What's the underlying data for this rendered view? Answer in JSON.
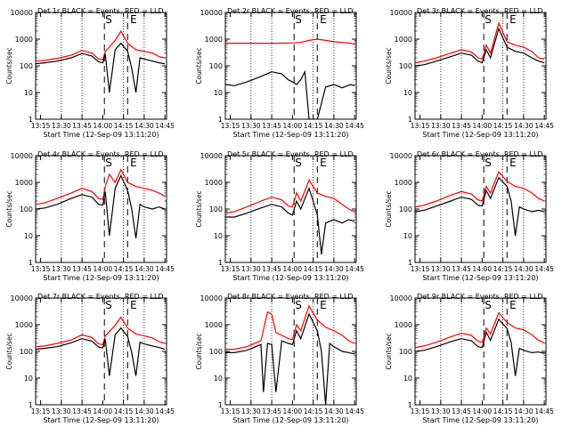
{
  "figure": {
    "x_tick_labels": [
      "13:15",
      "13:30",
      "13:45",
      "14:00",
      "14:15",
      "14:30",
      "14:45"
    ],
    "y_tick_labels": [
      "1",
      "10",
      "100",
      "1000",
      "10000"
    ],
    "ylabel": "Counts/sec",
    "xlabel": "Start Time (12-Sep-09 13:11:20)",
    "black_label": "BLACK = Events",
    "red_label": "RED = LLD",
    "marker_s": "S",
    "marker_e": "E"
  },
  "chart_data": [
    {
      "type": "line",
      "title": "Det 1r BLACK = Events, RED = LLD",
      "xlabel": "Start Time (12-Sep-09 13:11:20)",
      "ylabel": "Counts/sec",
      "ylim": [
        1,
        10000
      ],
      "yscale": "log",
      "x_ticks": [
        "13:15",
        "13:30",
        "13:45",
        "14:00",
        "14:15",
        "14:30",
        "14:45"
      ],
      "series": [
        {
          "name": "RED = LLD",
          "color": "#ff0000",
          "x": [
            13.19,
            13.3,
            13.45,
            13.62,
            13.75,
            13.87,
            13.95,
            14.0,
            14.03,
            14.08,
            14.15,
            14.22,
            14.3,
            14.4,
            14.5,
            14.6,
            14.68,
            14.75
          ],
          "y": [
            150,
            160,
            190,
            250,
            380,
            300,
            180,
            170,
            350,
            500,
            900,
            2000,
            700,
            400,
            350,
            300,
            220,
            200
          ]
        },
        {
          "name": "BLACK = Events",
          "color": "#000000",
          "x": [
            13.19,
            13.3,
            13.45,
            13.62,
            13.75,
            13.87,
            13.95,
            14.0,
            14.03,
            14.08,
            14.15,
            14.22,
            14.3,
            14.35,
            14.4,
            14.45,
            14.5,
            14.6,
            14.68,
            14.75
          ],
          "y": [
            120,
            130,
            150,
            200,
            290,
            230,
            140,
            130,
            280,
            10,
            400,
            700,
            350,
            80,
            10,
            200,
            180,
            150,
            130,
            120
          ]
        }
      ]
    },
    {
      "type": "line",
      "title": "Det 2r BLACK = Events, RED = LLD",
      "xlabel": "Start Time (12-Sep-09 13:11:20)",
      "ylabel": "Counts/sec",
      "ylim": [
        1,
        10000
      ],
      "yscale": "log",
      "x_ticks": [
        "13:15",
        "13:30",
        "13:45",
        "14:00",
        "14:15",
        "14:30",
        "14:45"
      ],
      "series": [
        {
          "name": "RED = LLD",
          "color": "#ff0000",
          "x": [
            13.19,
            13.4,
            13.6,
            13.8,
            14.0,
            14.1,
            14.2,
            14.3,
            14.4,
            14.5,
            14.6,
            14.7,
            14.75
          ],
          "y": [
            700,
            700,
            700,
            700,
            720,
            750,
            900,
            1000,
            900,
            800,
            750,
            700,
            650
          ]
        },
        {
          "name": "BLACK = Events",
          "color": "#000000",
          "x": [
            13.19,
            13.3,
            13.45,
            13.62,
            13.75,
            13.87,
            13.95,
            14.0,
            14.05,
            14.1,
            14.15,
            14.2,
            14.3,
            14.4,
            14.5,
            14.6,
            14.7,
            14.75
          ],
          "y": [
            20,
            18,
            25,
            40,
            60,
            50,
            30,
            25,
            20,
            30,
            60,
            1,
            1,
            16,
            20,
            15,
            20,
            18
          ]
        }
      ]
    },
    {
      "type": "line",
      "title": "Det 3r BLACK = Events, RED = LLD",
      "xlabel": "Start Time (12-Sep-09 13:11:20)",
      "ylabel": "Counts/sec",
      "ylim": [
        1,
        10000
      ],
      "yscale": "log",
      "x_ticks": [
        "13:15",
        "13:30",
        "13:45",
        "14:00",
        "14:15",
        "14:30",
        "14:45"
      ],
      "series": [
        {
          "name": "RED = LLD",
          "color": "#ff0000",
          "x": [
            13.19,
            13.3,
            13.45,
            13.62,
            13.75,
            13.87,
            13.95,
            14.0,
            14.05,
            14.1,
            14.2,
            14.3,
            14.4,
            14.5,
            14.6,
            14.68,
            14.75
          ],
          "y": [
            130,
            150,
            200,
            300,
            400,
            330,
            200,
            180,
            600,
            300,
            4000,
            800,
            600,
            500,
            350,
            200,
            180
          ]
        },
        {
          "name": "BLACK = Events",
          "color": "#000000",
          "x": [
            13.19,
            13.3,
            13.45,
            13.62,
            13.75,
            13.87,
            13.95,
            14.0,
            14.05,
            14.1,
            14.2,
            14.3,
            14.4,
            14.5,
            14.6,
            14.68,
            14.75
          ],
          "y": [
            100,
            110,
            150,
            220,
            300,
            250,
            150,
            130,
            400,
            200,
            2500,
            500,
            350,
            300,
            200,
            150,
            130
          ]
        }
      ]
    },
    {
      "type": "line",
      "title": "Det 4r BLACK = Events, RED = LLD",
      "xlabel": "Start Time (12-Sep-09 13:11:20)",
      "ylabel": "Counts/sec",
      "ylim": [
        1,
        10000
      ],
      "yscale": "log",
      "x_ticks": [
        "13:15",
        "13:30",
        "13:45",
        "14:00",
        "14:15",
        "14:30",
        "14:45"
      ],
      "series": [
        {
          "name": "RED = LLD",
          "color": "#ff0000",
          "x": [
            13.19,
            13.3,
            13.45,
            13.62,
            13.75,
            13.87,
            13.95,
            14.0,
            14.03,
            14.08,
            14.15,
            14.22,
            14.3,
            14.4,
            14.5,
            14.6,
            14.68,
            14.75
          ],
          "y": [
            150,
            170,
            250,
            400,
            600,
            450,
            250,
            230,
            700,
            2000,
            1000,
            3000,
            1000,
            700,
            600,
            500,
            400,
            300
          ]
        },
        {
          "name": "BLACK = Events",
          "color": "#000000",
          "x": [
            13.19,
            13.3,
            13.45,
            13.62,
            13.75,
            13.87,
            13.95,
            14.0,
            14.03,
            14.08,
            14.15,
            14.22,
            14.3,
            14.35,
            14.4,
            14.45,
            14.5,
            14.6,
            14.68,
            14.75
          ],
          "y": [
            100,
            110,
            150,
            250,
            350,
            280,
            150,
            140,
            450,
            10,
            600,
            1800,
            500,
            100,
            8,
            150,
            120,
            100,
            120,
            100
          ]
        }
      ]
    },
    {
      "type": "line",
      "title": "Det 5r BLACK = Events, RED = LLD",
      "xlabel": "Start Time (12-Sep-09 13:11:20)",
      "ylabel": "Counts/sec",
      "ylim": [
        1,
        10000
      ],
      "yscale": "log",
      "x_ticks": [
        "13:15",
        "13:30",
        "13:45",
        "14:00",
        "14:15",
        "14:30",
        "14:45"
      ],
      "series": [
        {
          "name": "RED = LLD",
          "color": "#ff0000",
          "x": [
            13.19,
            13.3,
            13.45,
            13.62,
            13.75,
            13.87,
            13.95,
            14.0,
            14.05,
            14.1,
            14.2,
            14.3,
            14.4,
            14.5,
            14.6,
            14.68,
            14.75
          ],
          "y": [
            70,
            80,
            120,
            200,
            280,
            220,
            130,
            120,
            400,
            200,
            1200,
            400,
            300,
            250,
            150,
            100,
            80
          ]
        },
        {
          "name": "BLACK = Events",
          "color": "#000000",
          "x": [
            13.19,
            13.3,
            13.45,
            13.62,
            13.75,
            13.87,
            13.95,
            14.0,
            14.05,
            14.1,
            14.2,
            14.25,
            14.3,
            14.35,
            14.4,
            14.5,
            14.6,
            14.68,
            14.75
          ],
          "y": [
            50,
            50,
            70,
            110,
            150,
            120,
            70,
            60,
            200,
            100,
            600,
            200,
            60,
            2,
            30,
            40,
            30,
            40,
            35
          ]
        }
      ]
    },
    {
      "type": "line",
      "title": "Det 6r BLACK = Events, RED = LLD",
      "xlabel": "Start Time (12-Sep-09 13:11:20)",
      "ylabel": "Counts/sec",
      "ylim": [
        1,
        10000
      ],
      "yscale": "log",
      "x_ticks": [
        "13:15",
        "13:30",
        "13:45",
        "14:00",
        "14:15",
        "14:30",
        "14:45"
      ],
      "series": [
        {
          "name": "RED = LLD",
          "color": "#ff0000",
          "x": [
            13.19,
            13.3,
            13.45,
            13.62,
            13.75,
            13.87,
            13.95,
            14.0,
            14.05,
            14.1,
            14.2,
            14.3,
            14.4,
            14.5,
            14.6,
            14.68,
            14.75
          ],
          "y": [
            120,
            140,
            200,
            330,
            450,
            370,
            220,
            200,
            700,
            400,
            2500,
            1100,
            700,
            600,
            400,
            250,
            200
          ]
        },
        {
          "name": "BLACK = Events",
          "color": "#000000",
          "x": [
            13.19,
            13.3,
            13.45,
            13.62,
            13.75,
            13.87,
            13.95,
            14.0,
            14.05,
            14.1,
            14.2,
            14.3,
            14.35,
            14.4,
            14.45,
            14.5,
            14.6,
            14.68,
            14.75
          ],
          "y": [
            80,
            90,
            130,
            200,
            280,
            230,
            140,
            130,
            500,
            250,
            1500,
            700,
            200,
            10,
            120,
            100,
            80,
            90,
            80
          ]
        }
      ]
    },
    {
      "type": "line",
      "title": "Det 7r BLACK = Events, RED = LLD",
      "xlabel": "Start Time (12-Sep-09 13:11:20)",
      "ylabel": "Counts/sec",
      "ylim": [
        1,
        10000
      ],
      "yscale": "log",
      "x_ticks": [
        "13:15",
        "13:30",
        "13:45",
        "14:00",
        "14:15",
        "14:30",
        "14:45"
      ],
      "series": [
        {
          "name": "RED = LLD",
          "color": "#ff0000",
          "x": [
            13.19,
            13.3,
            13.45,
            13.62,
            13.75,
            13.87,
            13.95,
            14.0,
            14.03,
            14.08,
            14.15,
            14.22,
            14.3,
            14.4,
            14.5,
            14.6,
            14.68,
            14.75
          ],
          "y": [
            150,
            160,
            200,
            270,
            420,
            330,
            190,
            180,
            380,
            550,
            950,
            1900,
            750,
            450,
            380,
            320,
            230,
            200
          ]
        },
        {
          "name": "BLACK = Events",
          "color": "#000000",
          "x": [
            13.19,
            13.3,
            13.45,
            13.62,
            13.75,
            13.87,
            13.95,
            14.0,
            14.03,
            14.08,
            14.15,
            14.22,
            14.3,
            14.35,
            14.4,
            14.45,
            14.5,
            14.6,
            14.68,
            14.75
          ],
          "y": [
            120,
            130,
            150,
            210,
            300,
            240,
            145,
            135,
            290,
            12,
            420,
            750,
            360,
            90,
            12,
            220,
            190,
            160,
            140,
            120
          ]
        }
      ]
    },
    {
      "type": "line",
      "title": "Det 8r BLACK = Events, RED = LLD",
      "xlabel": "Start Time (12-Sep-09 13:11:20)",
      "ylabel": "Counts/sec",
      "ylim": [
        1,
        10000
      ],
      "yscale": "log",
      "x_ticks": [
        "13:15",
        "13:30",
        "13:45",
        "14:00",
        "14:15",
        "14:30",
        "14:45"
      ],
      "series": [
        {
          "name": "RED = LLD",
          "color": "#ff0000",
          "x": [
            13.19,
            13.3,
            13.45,
            13.62,
            13.7,
            13.75,
            13.8,
            13.87,
            13.95,
            14.0,
            14.05,
            14.1,
            14.2,
            14.3,
            14.4,
            14.5,
            14.6,
            14.68,
            14.75
          ],
          "y": [
            120,
            120,
            150,
            250,
            3000,
            2500,
            500,
            400,
            300,
            280,
            1000,
            600,
            5000,
            1500,
            800,
            600,
            400,
            250,
            200
          ]
        },
        {
          "name": "BLACK = Events",
          "color": "#000000",
          "x": [
            13.19,
            13.3,
            13.45,
            13.62,
            13.65,
            13.7,
            13.75,
            13.8,
            13.87,
            13.95,
            14.0,
            14.05,
            14.1,
            14.2,
            14.3,
            14.35,
            14.4,
            14.45,
            14.5,
            14.6,
            14.68,
            14.75
          ],
          "y": [
            90,
            90,
            110,
            180,
            3,
            200,
            180,
            3,
            250,
            200,
            180,
            600,
            300,
            2500,
            600,
            100,
            1,
            200,
            150,
            100,
            90,
            80
          ]
        }
      ]
    },
    {
      "type": "line",
      "title": "Det 9r BLACK = Events, RED = LLD",
      "xlabel": "Start Time (12-Sep-09 13:11:20)",
      "ylabel": "Counts/sec",
      "ylim": [
        1,
        10000
      ],
      "yscale": "log",
      "x_ticks": [
        "13:15",
        "13:30",
        "13:45",
        "14:00",
        "14:15",
        "14:30",
        "14:45"
      ],
      "series": [
        {
          "name": "RED = LLD",
          "color": "#ff0000",
          "x": [
            13.19,
            13.3,
            13.45,
            13.62,
            13.75,
            13.87,
            13.95,
            14.0,
            14.05,
            14.1,
            14.2,
            14.3,
            14.4,
            14.5,
            14.6,
            14.68,
            14.75
          ],
          "y": [
            140,
            160,
            220,
            350,
            480,
            400,
            240,
            220,
            750,
            450,
            2800,
            1200,
            750,
            650,
            420,
            260,
            210
          ]
        },
        {
          "name": "BLACK = Events",
          "color": "#000000",
          "x": [
            13.19,
            13.3,
            13.45,
            13.62,
            13.75,
            13.87,
            13.95,
            14.0,
            14.05,
            14.1,
            14.2,
            14.3,
            14.35,
            14.4,
            14.45,
            14.5,
            14.6,
            14.68,
            14.75
          ],
          "y": [
            100,
            110,
            150,
            230,
            300,
            250,
            150,
            140,
            520,
            260,
            1600,
            720,
            220,
            12,
            130,
            110,
            90,
            95,
            85
          ]
        }
      ]
    }
  ]
}
